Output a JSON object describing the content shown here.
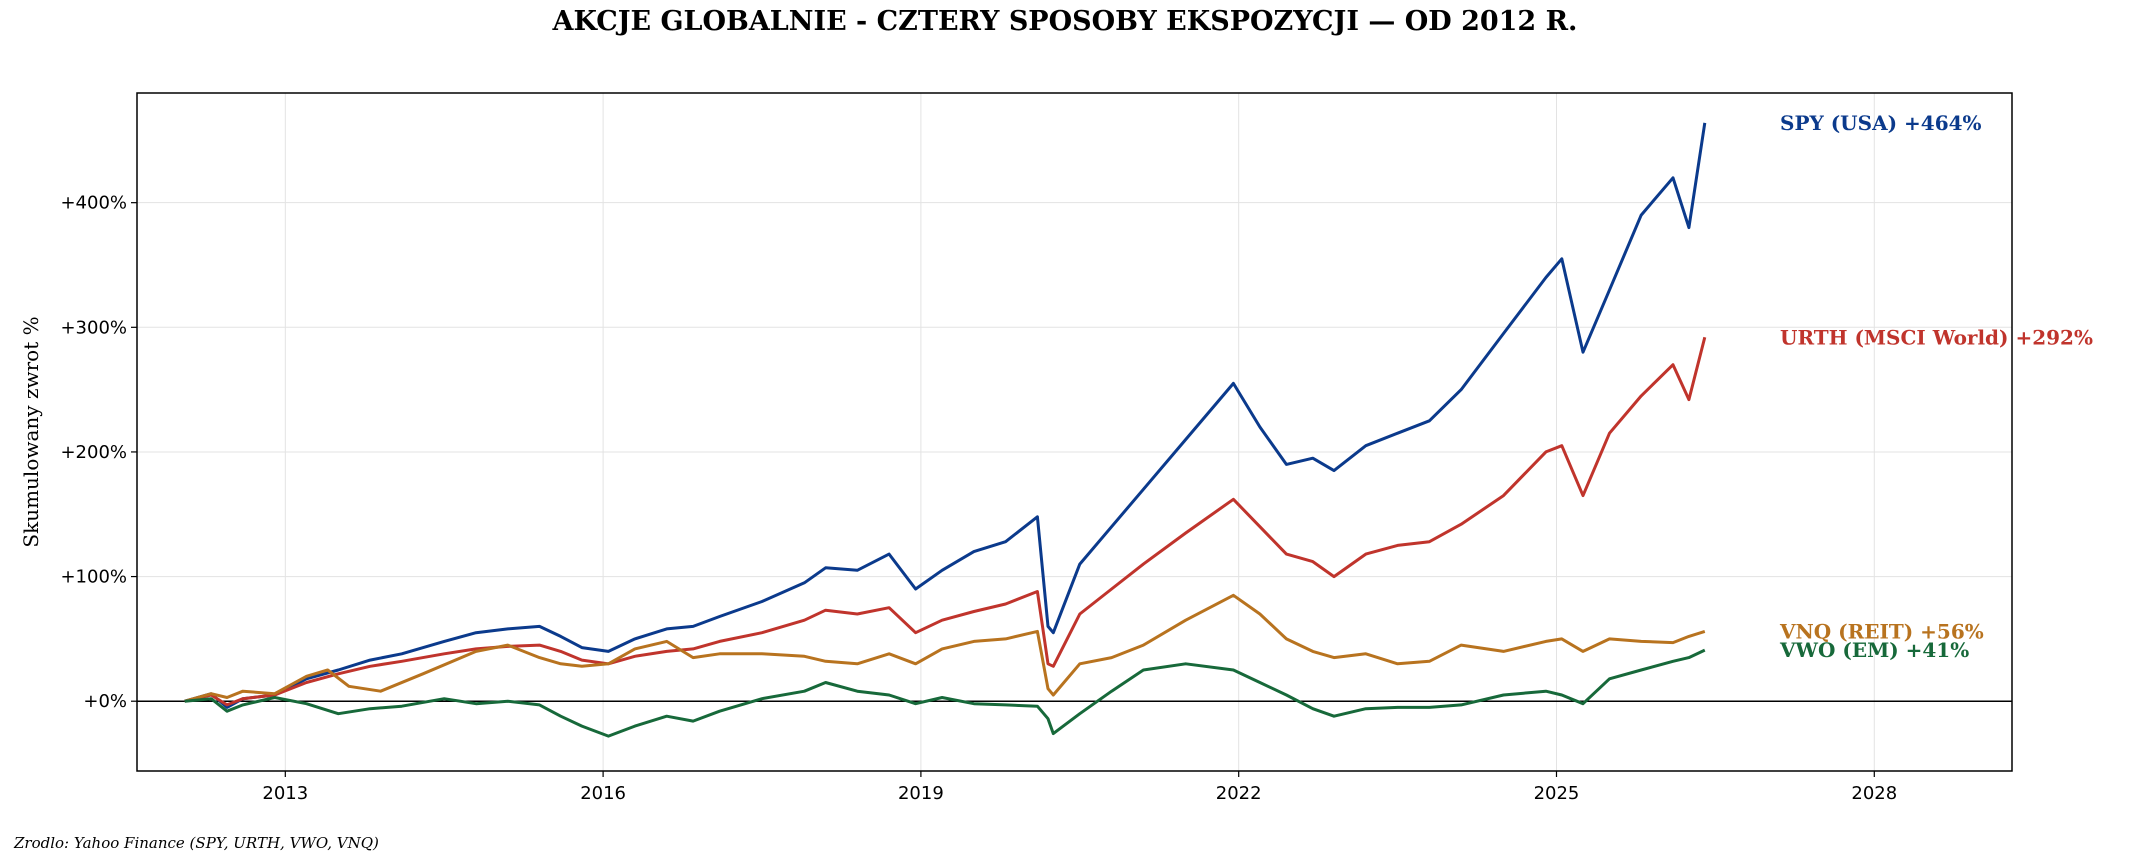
{
  "chart_data": {
    "type": "line",
    "title": "AKCJE GLOBALNIE - CZTERY SPOSOBY EKSPOZYCJI — OD 2012 R.",
    "xlabel": "",
    "ylabel": "Skumulowany zwrot %",
    "xlim": [
      2011.6,
      2029.3
    ],
    "ylim": [
      -56,
      488
    ],
    "x_ticks": [
      2013,
      2016,
      2019,
      2022,
      2025,
      2028
    ],
    "x_tick_labels": [
      "2013",
      "2016",
      "2019",
      "2022",
      "2025",
      "2028"
    ],
    "y_ticks": [
      0,
      100,
      200,
      300,
      400
    ],
    "y_tick_labels": [
      "+0%",
      "+100%",
      "+200%",
      "+300%",
      "+400%"
    ],
    "grid": true,
    "zero_line": true,
    "legend": "end-of-line labels",
    "source": "Zrodlo: Yahoo Finance (SPY, URTH, VWO, VNQ)",
    "series": [
      {
        "name": "SPY (USA)",
        "end_label": "SPY (USA)  +464%",
        "color": "#0b3a8c",
        "x": [
          2012.05,
          2012.3,
          2012.45,
          2012.6,
          2012.9,
          2013.2,
          2013.5,
          2013.8,
          2014.1,
          2014.5,
          2014.8,
          2015.1,
          2015.4,
          2015.6,
          2015.8,
          2016.05,
          2016.3,
          2016.6,
          2016.85,
          2017.1,
          2017.5,
          2017.9,
          2018.1,
          2018.4,
          2018.7,
          2018.95,
          2019.2,
          2019.5,
          2019.8,
          2020.1,
          2020.2,
          2020.25,
          2020.5,
          2020.8,
          2021.1,
          2021.5,
          2021.95,
          2022.2,
          2022.45,
          2022.7,
          2022.9,
          2023.2,
          2023.5,
          2023.8,
          2024.1,
          2024.5,
          2024.9,
          2025.05,
          2025.25,
          2025.5,
          2025.8,
          2026.1,
          2026.25,
          2026.4
        ],
        "y": [
          0,
          6,
          -5,
          2,
          5,
          18,
          25,
          33,
          38,
          48,
          55,
          58,
          60,
          52,
          43,
          40,
          50,
          58,
          60,
          68,
          80,
          95,
          107,
          105,
          118,
          90,
          105,
          120,
          128,
          148,
          60,
          55,
          110,
          140,
          170,
          210,
          255,
          220,
          190,
          195,
          185,
          205,
          215,
          225,
          250,
          295,
          340,
          355,
          280,
          330,
          390,
          420,
          380,
          464
        ]
      },
      {
        "name": "URTH (MSCI World)",
        "end_label": "URTH (MSCI World)  +292%",
        "color": "#c0342c",
        "x": [
          2012.05,
          2012.3,
          2012.45,
          2012.6,
          2012.9,
          2013.2,
          2013.5,
          2013.8,
          2014.1,
          2014.5,
          2014.8,
          2015.1,
          2015.4,
          2015.6,
          2015.8,
          2016.05,
          2016.3,
          2016.6,
          2016.85,
          2017.1,
          2017.5,
          2017.9,
          2018.1,
          2018.4,
          2018.7,
          2018.95,
          2019.2,
          2019.5,
          2019.8,
          2020.1,
          2020.2,
          2020.25,
          2020.5,
          2020.8,
          2021.1,
          2021.5,
          2021.95,
          2022.2,
          2022.45,
          2022.7,
          2022.9,
          2023.2,
          2023.5,
          2023.8,
          2024.1,
          2024.5,
          2024.9,
          2025.05,
          2025.25,
          2025.5,
          2025.8,
          2026.1,
          2026.25,
          2026.4
        ],
        "y": [
          0,
          5,
          -3,
          2,
          5,
          15,
          22,
          28,
          32,
          38,
          42,
          44,
          45,
          40,
          33,
          30,
          36,
          40,
          42,
          48,
          55,
          65,
          73,
          70,
          75,
          55,
          65,
          72,
          78,
          88,
          30,
          28,
          70,
          90,
          110,
          135,
          162,
          140,
          118,
          112,
          100,
          118,
          125,
          128,
          142,
          165,
          200,
          205,
          165,
          215,
          245,
          270,
          242,
          292
        ]
      },
      {
        "name": "VNQ (REIT)",
        "end_label": "VNQ (REIT)  +56%",
        "color": "#b8731f",
        "x": [
          2012.05,
          2012.3,
          2012.45,
          2012.6,
          2012.9,
          2013.2,
          2013.4,
          2013.6,
          2013.9,
          2014.3,
          2014.8,
          2015.1,
          2015.4,
          2015.6,
          2015.8,
          2016.05,
          2016.3,
          2016.6,
          2016.85,
          2017.1,
          2017.5,
          2017.9,
          2018.1,
          2018.4,
          2018.7,
          2018.95,
          2019.2,
          2019.5,
          2019.8,
          2020.1,
          2020.2,
          2020.25,
          2020.5,
          2020.8,
          2021.1,
          2021.5,
          2021.95,
          2022.2,
          2022.45,
          2022.7,
          2022.9,
          2023.2,
          2023.5,
          2023.8,
          2024.1,
          2024.5,
          2024.9,
          2025.05,
          2025.25,
          2025.5,
          2025.8,
          2026.1,
          2026.25,
          2026.4
        ],
        "y": [
          0,
          6,
          3,
          8,
          6,
          20,
          25,
          12,
          8,
          22,
          40,
          45,
          35,
          30,
          28,
          30,
          42,
          48,
          35,
          38,
          38,
          36,
          32,
          30,
          38,
          30,
          42,
          48,
          50,
          56,
          10,
          5,
          30,
          35,
          45,
          65,
          85,
          70,
          50,
          40,
          35,
          38,
          30,
          32,
          45,
          40,
          48,
          50,
          40,
          50,
          48,
          47,
          52,
          56
        ]
      },
      {
        "name": "VWO (EM)",
        "end_label": "VWO (EM)  +41%",
        "color": "#17693a",
        "x": [
          2012.05,
          2012.3,
          2012.45,
          2012.6,
          2012.9,
          2013.2,
          2013.5,
          2013.8,
          2014.1,
          2014.5,
          2014.8,
          2015.1,
          2015.4,
          2015.6,
          2015.8,
          2016.05,
          2016.3,
          2016.6,
          2016.85,
          2017.1,
          2017.5,
          2017.9,
          2018.1,
          2018.4,
          2018.7,
          2018.95,
          2019.2,
          2019.5,
          2019.8,
          2020.1,
          2020.2,
          2020.25,
          2020.5,
          2020.8,
          2021.1,
          2021.5,
          2021.95,
          2022.2,
          2022.45,
          2022.7,
          2022.9,
          2023.2,
          2023.5,
          2023.8,
          2024.1,
          2024.5,
          2024.9,
          2025.05,
          2025.25,
          2025.5,
          2025.8,
          2026.1,
          2026.25,
          2026.4
        ],
        "y": [
          0,
          2,
          -8,
          -3,
          3,
          -2,
          -10,
          -6,
          -4,
          2,
          -2,
          0,
          -3,
          -12,
          -20,
          -28,
          -20,
          -12,
          -16,
          -8,
          2,
          8,
          15,
          8,
          5,
          -2,
          3,
          -2,
          -3,
          -4,
          -14,
          -26,
          -10,
          8,
          25,
          30,
          25,
          15,
          5,
          -6,
          -12,
          -6,
          -5,
          -5,
          -3,
          5,
          8,
          5,
          -2,
          18,
          25,
          32,
          35,
          41
        ]
      }
    ]
  }
}
